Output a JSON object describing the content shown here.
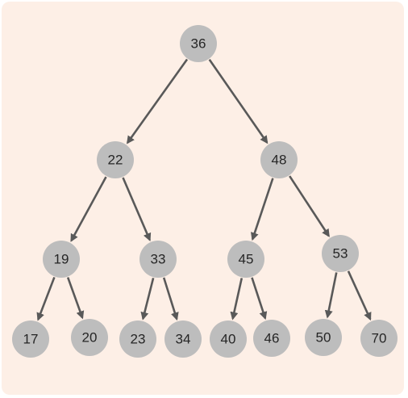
{
  "tree": {
    "nodes": [
      {
        "id": "n36",
        "label": "36"
      },
      {
        "id": "n22",
        "label": "22"
      },
      {
        "id": "n48",
        "label": "48"
      },
      {
        "id": "n19",
        "label": "19"
      },
      {
        "id": "n33",
        "label": "33"
      },
      {
        "id": "n45",
        "label": "45"
      },
      {
        "id": "n53",
        "label": "53"
      },
      {
        "id": "n17",
        "label": "17"
      },
      {
        "id": "n20",
        "label": "20"
      },
      {
        "id": "n23",
        "label": "23"
      },
      {
        "id": "n34",
        "label": "34"
      },
      {
        "id": "n40",
        "label": "40"
      },
      {
        "id": "n46",
        "label": "46"
      },
      {
        "id": "n50",
        "label": "50"
      },
      {
        "id": "n70",
        "label": "70"
      }
    ],
    "edges": [
      {
        "from": "n36",
        "to": "n22"
      },
      {
        "from": "n36",
        "to": "n48"
      },
      {
        "from": "n22",
        "to": "n19"
      },
      {
        "from": "n22",
        "to": "n33"
      },
      {
        "from": "n48",
        "to": "n45"
      },
      {
        "from": "n48",
        "to": "n53"
      },
      {
        "from": "n19",
        "to": "n17"
      },
      {
        "from": "n19",
        "to": "n20"
      },
      {
        "from": "n33",
        "to": "n23"
      },
      {
        "from": "n33",
        "to": "n34"
      },
      {
        "from": "n45",
        "to": "n40"
      },
      {
        "from": "n45",
        "to": "n46"
      },
      {
        "from": "n53",
        "to": "n50"
      },
      {
        "from": "n53",
        "to": "n70"
      }
    ],
    "colors": {
      "background": "#fdefe6",
      "node": "#bdbdbd",
      "edge": "#595959",
      "text": "#262626"
    }
  }
}
